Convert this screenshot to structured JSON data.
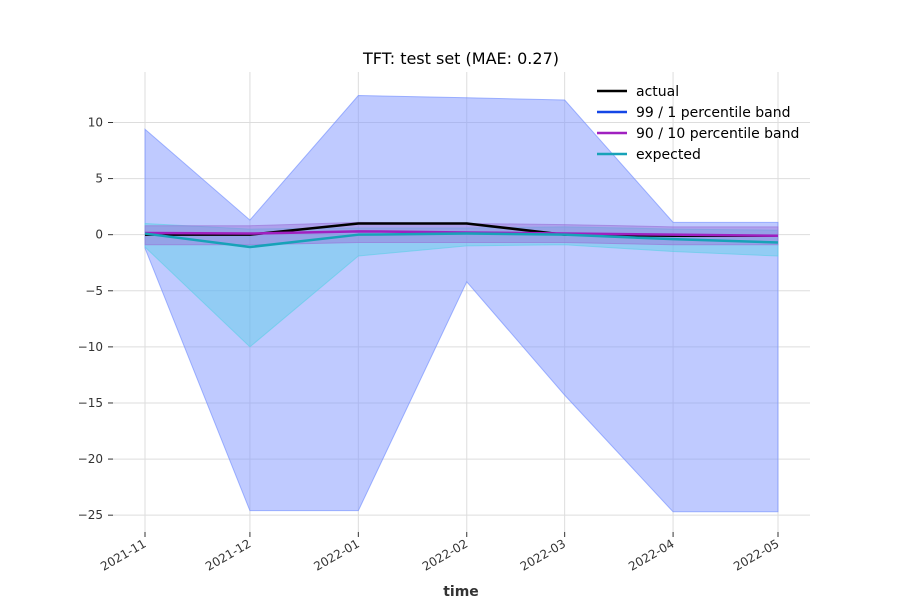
{
  "chart_data": {
    "type": "line",
    "title": "TFT: test set (MAE: 0.27)",
    "xlabel": "time",
    "ylabel": "",
    "x": [
      "2021-11",
      "2021-12",
      "2022-01",
      "2022-02",
      "2022-03",
      "2022-04",
      "2022-05"
    ],
    "x_dates": [
      "2021-11-01",
      "2021-12-01",
      "2022-01-01",
      "2022-02-01",
      "2022-03-01",
      "2022-04-01",
      "2022-05-01"
    ],
    "ylim": [
      -26.5,
      14.5
    ],
    "yticks": [
      10,
      5,
      0,
      -5,
      -10,
      -15,
      -20,
      -25
    ],
    "grid": true,
    "legend_position": "top-right",
    "series": [
      {
        "name": "actual",
        "kind": "line",
        "color": "#000000",
        "values": [
          0,
          0,
          1,
          1,
          0,
          -0.1,
          -0.1
        ]
      },
      {
        "name": "99 / 1 percentile band",
        "kind": "band",
        "color": "#1446e6",
        "fill": "#8095ff",
        "upper": [
          9.4,
          1.3,
          12.4,
          12.2,
          12.0,
          1.1,
          1.1
        ],
        "lower": [
          -1.2,
          -24.6,
          -24.6,
          -4.2,
          -14.3,
          -24.7,
          -24.7
        ]
      },
      {
        "name": "90 / 10 percentile band",
        "kind": "band",
        "color": "#a020c0",
        "fill": "#9a6fd6",
        "upper": [
          0.8,
          0.8,
          1.1,
          1.0,
          0.9,
          0.7,
          0.7
        ],
        "lower": [
          -0.9,
          -0.9,
          -0.7,
          -0.7,
          -0.7,
          -0.9,
          -0.9
        ]
      },
      {
        "name": "expected",
        "kind": "line",
        "color": "#17a2b8",
        "fill": "#5ccfe6",
        "values": [
          0.1,
          -1.1,
          0,
          0.1,
          0,
          -0.4,
          -0.7
        ],
        "upper": [
          1.0,
          0.5,
          0.6,
          0.6,
          0.7,
          0.5,
          0.4
        ],
        "lower": [
          -1.1,
          -10.0,
          -1.9,
          -1.0,
          -0.9,
          -1.5,
          -1.9
        ]
      }
    ]
  }
}
